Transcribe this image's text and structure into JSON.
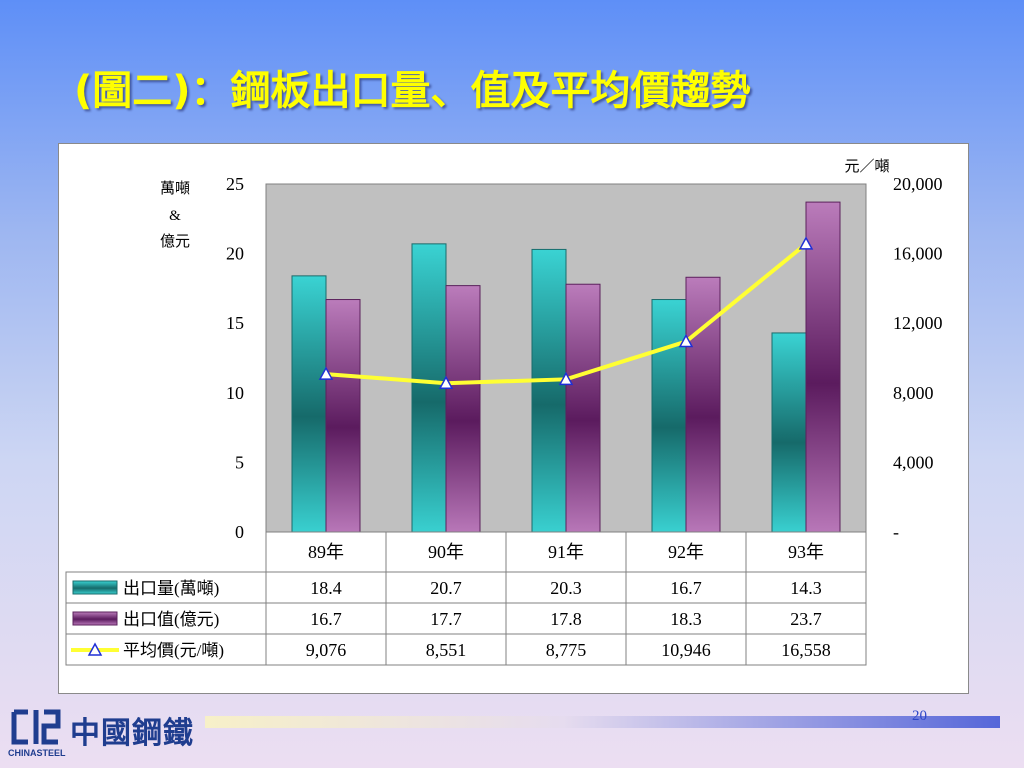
{
  "slide": {
    "title": "(圖二)：鋼板出口量、值及平均價趨勢",
    "page_number": "20",
    "company_name": "中國鋼鐵",
    "company_sub": "CHINASTEEL"
  },
  "colors": {
    "background_top": "#5e8ff7",
    "title": "#ffff00",
    "plot_bg": "#c0c0c0",
    "volume_bar": "#33cccc",
    "value_bar": "#b36fb3",
    "price_line": "#ffff33",
    "price_marker": "#1f2fd6"
  },
  "chart_data": {
    "type": "bar",
    "categories": [
      "89年",
      "90年",
      "91年",
      "92年",
      "93年"
    ],
    "left_axis": {
      "label_lines": [
        "萬噸",
        "&",
        "億元"
      ],
      "ylim": [
        0,
        25
      ],
      "ticks": [
        "0",
        "5",
        "10",
        "15",
        "20",
        "25"
      ]
    },
    "right_axis": {
      "label": "元／噸",
      "ylim": [
        0,
        20000
      ],
      "ticks": [
        "-",
        "4,000",
        "8,000",
        "12,000",
        "16,000",
        "20,000"
      ]
    },
    "series": [
      {
        "name": "出口量(萬噸)",
        "type": "bar",
        "axis": "left",
        "values": [
          18.4,
          20.7,
          20.3,
          16.7,
          14.3
        ],
        "labels": [
          "18.4",
          "20.7",
          "20.3",
          "16.7",
          "14.3"
        ]
      },
      {
        "name": "出口值(億元)",
        "type": "bar",
        "axis": "left",
        "values": [
          16.7,
          17.7,
          17.8,
          18.3,
          23.7
        ],
        "labels": [
          "16.7",
          "17.7",
          "17.8",
          "18.3",
          "23.7"
        ]
      },
      {
        "name": "平均價(元/噸)",
        "type": "line",
        "axis": "right",
        "values": [
          9076,
          8551,
          8775,
          10946,
          16558
        ],
        "labels": [
          "9,076",
          "8,551",
          "8,775",
          "10,946",
          "16,558"
        ]
      }
    ],
    "grid": false,
    "legend": "data-table-below"
  }
}
